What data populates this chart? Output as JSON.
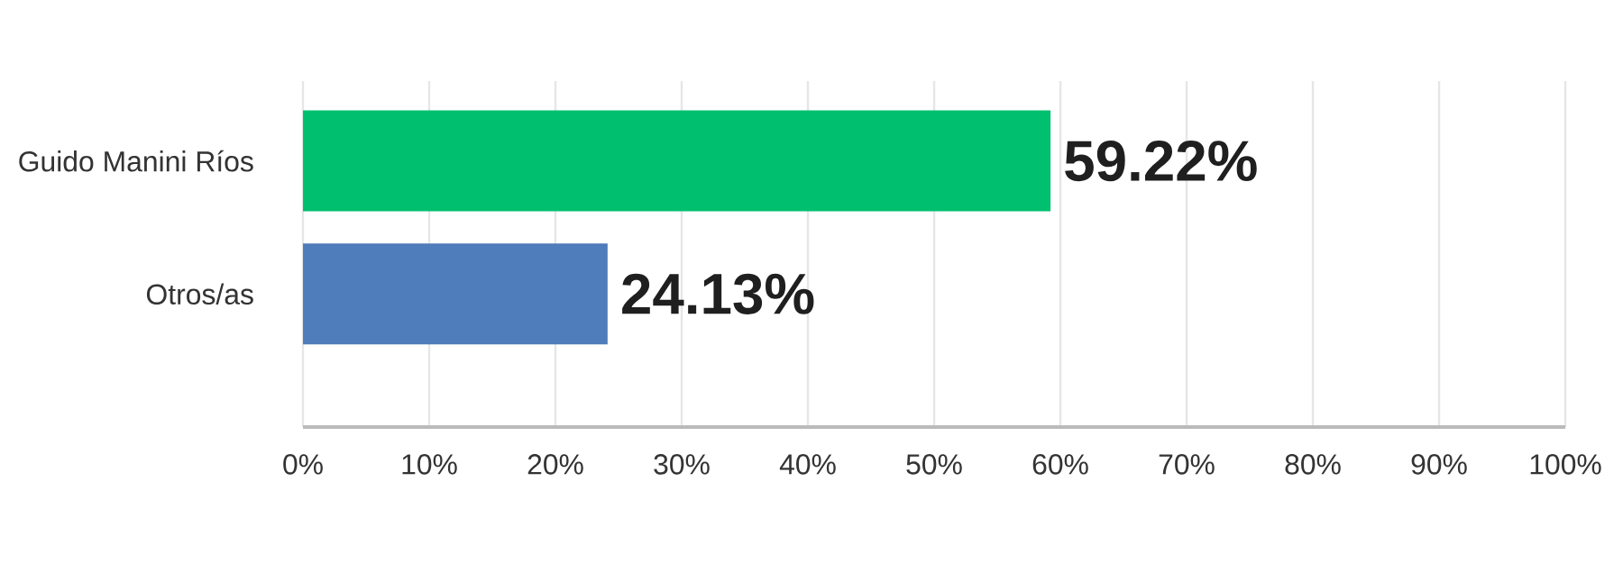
{
  "chart_data": {
    "type": "bar",
    "orientation": "horizontal",
    "categories": [
      "Guido Manini Ríos",
      "Otros/as"
    ],
    "values": [
      59.22,
      24.13
    ],
    "colors": [
      "#00bf6f",
      "#4f7cba"
    ],
    "value_labels": [
      "59.22%",
      "24.13%"
    ],
    "xlim": [
      0,
      100
    ],
    "xticks": [
      {
        "value": 0,
        "label": "0%"
      },
      {
        "value": 10,
        "label": "10%"
      },
      {
        "value": 20,
        "label": "20%"
      },
      {
        "value": 30,
        "label": "30%"
      },
      {
        "value": 40,
        "label": "40%"
      },
      {
        "value": 50,
        "label": "50%"
      },
      {
        "value": 60,
        "label": "60%"
      },
      {
        "value": 70,
        "label": "70%"
      },
      {
        "value": 80,
        "label": "80%"
      },
      {
        "value": 90,
        "label": "90%"
      },
      {
        "value": 100,
        "label": "100%"
      }
    ],
    "grid": "x"
  }
}
